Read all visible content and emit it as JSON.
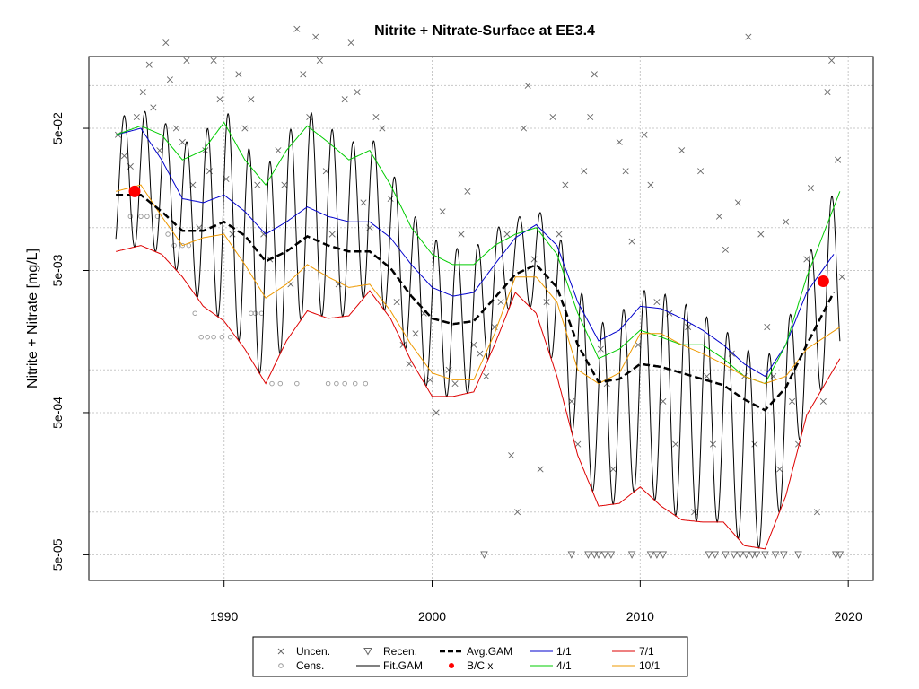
{
  "chart_data": {
    "type": "line",
    "title": "Nitrite + Nitrate-Surface at EE3.4",
    "xlabel": "",
    "ylabel": "Nitrite + Nitrate [mg/L]",
    "y_scale": "log",
    "xlim": [
      1983.5,
      2021.2
    ],
    "ylim": [
      3.3e-05,
      0.16
    ],
    "x_ticks": [
      1990,
      2000,
      2010,
      2020
    ],
    "x_tick_labels": [
      "1990",
      "2000",
      "2010",
      "2020"
    ],
    "y_ticks": [
      5e-05,
      0.0005,
      0.005,
      0.05
    ],
    "y_tick_labels": [
      "5e-05",
      "5e-04",
      "5e-03",
      "5e-02"
    ],
    "grid": true,
    "legend_position": "bottom",
    "legend": [
      {
        "label": "Uncen.",
        "symbol": "x",
        "color": "#666666"
      },
      {
        "label": "Cens.",
        "symbol": "circle",
        "color": "#999999"
      },
      {
        "label": "Recen.",
        "symbol": "triangle-down",
        "color": "#666666"
      },
      {
        "label": "Fit.GAM",
        "symbol": "line",
        "color": "#000000"
      },
      {
        "label": "Avg.GAM",
        "symbol": "dashed-line",
        "color": "#000000"
      },
      {
        "label": "B/C x",
        "symbol": "dot",
        "color": "#ff0000"
      },
      {
        "label": "1/1",
        "symbol": "line",
        "color": "#0000cc"
      },
      {
        "label": "4/1",
        "symbol": "line",
        "color": "#00cc00"
      },
      {
        "label": "7/1",
        "symbol": "line",
        "color": "#dd0000"
      },
      {
        "label": "10/1",
        "symbol": "line",
        "color": "#ee9900"
      }
    ],
    "series": [
      {
        "name": "Avg.GAM",
        "color": "#000000",
        "style": "dashed",
        "x": [
          1984.8,
          1986,
          1987,
          1988,
          1989,
          1990,
          1991,
          1992,
          1993,
          1994,
          1995,
          1996,
          1997,
          1998,
          1999,
          2000,
          2001,
          2002,
          2003,
          2004,
          2005,
          2006,
          2007,
          2008,
          2009,
          2010,
          2011,
          2012,
          2013,
          2014,
          2015,
          2016,
          2017,
          2018,
          2019.3
        ],
        "y": [
          0.017,
          0.017,
          0.013,
          0.0095,
          0.0095,
          0.011,
          0.0088,
          0.0058,
          0.0068,
          0.0087,
          0.0075,
          0.0068,
          0.0068,
          0.0052,
          0.0033,
          0.0023,
          0.0021,
          0.0022,
          0.0032,
          0.0047,
          0.0055,
          0.0038,
          0.0015,
          0.00082,
          0.00086,
          0.0011,
          0.00105,
          0.00095,
          0.00086,
          0.00078,
          0.00062,
          0.00052,
          0.00075,
          0.0015,
          0.0035
        ]
      },
      {
        "name": "1/1",
        "color": "#0000cc",
        "style": "solid",
        "x": [
          1984.8,
          1986,
          1987,
          1988,
          1989,
          1990,
          1991,
          1992,
          1993,
          1994,
          1995,
          1996,
          1997,
          1998,
          1999,
          2000,
          2001,
          2002,
          2003,
          2004,
          2005,
          2006,
          2007,
          2008,
          2009,
          2010,
          2011,
          2012,
          2013,
          2014,
          2015,
          2016,
          2017,
          2018,
          2019.3
        ],
        "y": [
          0.045,
          0.05,
          0.03,
          0.016,
          0.015,
          0.017,
          0.013,
          0.009,
          0.011,
          0.014,
          0.012,
          0.011,
          0.011,
          0.0085,
          0.0055,
          0.0038,
          0.0033,
          0.0035,
          0.0055,
          0.0085,
          0.0105,
          0.0075,
          0.003,
          0.0016,
          0.0019,
          0.0028,
          0.0027,
          0.0023,
          0.0019,
          0.0015,
          0.0011,
          0.0009,
          0.0015,
          0.0035,
          0.0065
        ]
      },
      {
        "name": "4/1",
        "color": "#00cc00",
        "style": "solid",
        "x": [
          1984.8,
          1986,
          1987,
          1988,
          1989,
          1990,
          1991,
          1992,
          1993,
          1994,
          1995,
          1996,
          1997,
          1998,
          1999,
          2000,
          2001,
          2002,
          2003,
          2004,
          2005,
          2006,
          2007,
          2008,
          2009,
          2010,
          2011,
          2012,
          2013,
          2014,
          2015,
          2016,
          2017,
          2018,
          2019.6
        ],
        "y": [
          0.045,
          0.052,
          0.045,
          0.03,
          0.035,
          0.055,
          0.03,
          0.02,
          0.035,
          0.052,
          0.04,
          0.03,
          0.035,
          0.02,
          0.01,
          0.0065,
          0.0055,
          0.0055,
          0.0075,
          0.009,
          0.01,
          0.0065,
          0.0025,
          0.0012,
          0.0014,
          0.0019,
          0.0017,
          0.0015,
          0.0015,
          0.0012,
          0.0009,
          0.0008,
          0.0015,
          0.0045,
          0.018
        ]
      },
      {
        "name": "7/1",
        "color": "#dd0000",
        "style": "solid",
        "x": [
          1984.8,
          1986,
          1987,
          1988,
          1989,
          1990,
          1991,
          1992,
          1993,
          1994,
          1995,
          1996,
          1997,
          1998,
          1999,
          2000,
          2001,
          2002,
          2003,
          2004,
          2005,
          2006,
          2007,
          2008,
          2009,
          2010,
          2011,
          2012,
          2013,
          2014,
          2015,
          2016,
          2017,
          2018,
          2019.6
        ],
        "y": [
          0.0068,
          0.0075,
          0.0065,
          0.0045,
          0.0028,
          0.0022,
          0.0014,
          0.0008,
          0.0016,
          0.0026,
          0.0023,
          0.0024,
          0.0036,
          0.0023,
          0.00115,
          0.00065,
          0.00065,
          0.0007,
          0.0015,
          0.0035,
          0.0025,
          0.0009,
          0.00025,
          0.00011,
          0.000115,
          0.00015,
          0.00011,
          8.8e-05,
          8.5e-05,
          8.5e-05,
          5.8e-05,
          5.5e-05,
          0.00013,
          0.00048,
          0.0012
        ]
      },
      {
        "name": "10/1",
        "color": "#ee9900",
        "style": "solid",
        "x": [
          1984.8,
          1986,
          1987,
          1988,
          1989,
          1990,
          1991,
          1992,
          1993,
          1994,
          1995,
          1996,
          1997,
          1998,
          1999,
          2000,
          2001,
          2002,
          2003,
          2004,
          2005,
          2006,
          2007,
          2008,
          2009,
          2010,
          2011,
          2012,
          2013,
          2014,
          2015,
          2016,
          2017,
          2018,
          2019.6
        ],
        "y": [
          0.018,
          0.02,
          0.012,
          0.0075,
          0.0085,
          0.009,
          0.0055,
          0.0032,
          0.004,
          0.0055,
          0.0045,
          0.0038,
          0.004,
          0.0026,
          0.0015,
          0.00095,
          0.00085,
          0.00085,
          0.0018,
          0.0045,
          0.0045,
          0.003,
          0.001,
          0.0008,
          0.00095,
          0.0018,
          0.0018,
          0.0015,
          0.0013,
          0.0011,
          0.0009,
          0.0008,
          0.0009,
          0.0014,
          0.002
        ]
      },
      {
        "name": "Fit.GAM",
        "color": "#000000",
        "style": "solid",
        "seasonal_envelope": "oscillates annually between the 7/1 curve (trough) and the upper 1/1 or 4/1 curve (peak)",
        "x_start": 1984.8,
        "x_end": 2019.6
      }
    ],
    "bc_points": [
      {
        "x": 1985.7,
        "y": 0.018
      },
      {
        "x": 2018.8,
        "y": 0.0042
      }
    ],
    "observations_uncensored": [
      [
        1984.9,
        0.045
      ],
      [
        1985.2,
        0.032
      ],
      [
        1985.5,
        0.027
      ],
      [
        1985.8,
        0.06
      ],
      [
        1986.1,
        0.09
      ],
      [
        1986.4,
        0.14
      ],
      [
        1986.6,
        0.07
      ],
      [
        1986.9,
        0.035
      ],
      [
        1987.2,
        0.2
      ],
      [
        1987.4,
        0.11
      ],
      [
        1987.7,
        0.05
      ],
      [
        1988.0,
        0.04
      ],
      [
        1988.2,
        0.15
      ],
      [
        1988.5,
        0.02
      ],
      [
        1988.8,
        0.01
      ],
      [
        1989.1,
        0.035
      ],
      [
        1989.3,
        0.025
      ],
      [
        1989.5,
        0.15
      ],
      [
        1989.8,
        0.08
      ],
      [
        1990.1,
        0.022
      ],
      [
        1990.4,
        0.009
      ],
      [
        1990.7,
        0.12
      ],
      [
        1991.0,
        0.05
      ],
      [
        1991.3,
        0.08
      ],
      [
        1991.6,
        0.02
      ],
      [
        1991.9,
        0.009
      ],
      [
        1992.2,
        0.006
      ],
      [
        1992.6,
        0.035
      ],
      [
        1992.9,
        0.02
      ],
      [
        1993.2,
        0.004
      ],
      [
        1993.5,
        0.25
      ],
      [
        1993.8,
        0.12
      ],
      [
        1994.1,
        0.06
      ],
      [
        1994.4,
        0.22
      ],
      [
        1994.6,
        0.15
      ],
      [
        1994.9,
        0.025
      ],
      [
        1995.2,
        0.009
      ],
      [
        1995.5,
        0.004
      ],
      [
        1995.8,
        0.08
      ],
      [
        1996.1,
        0.2
      ],
      [
        1996.4,
        0.09
      ],
      [
        1996.7,
        0.015
      ],
      [
        1997.0,
        0.01
      ],
      [
        1997.3,
        0.06
      ],
      [
        1997.6,
        0.05
      ],
      [
        1998.0,
        0.016
      ],
      [
        1998.3,
        0.003
      ],
      [
        1998.6,
        0.0015
      ],
      [
        1998.9,
        0.0011
      ],
      [
        1999.2,
        0.0018
      ],
      [
        1999.6,
        0.0025
      ],
      [
        1999.9,
        0.00085
      ],
      [
        2000.2,
        0.0005
      ],
      [
        2000.5,
        0.013
      ],
      [
        2000.8,
        0.001
      ],
      [
        2001.1,
        0.0008
      ],
      [
        2001.4,
        0.009
      ],
      [
        2001.7,
        0.018
      ],
      [
        2002.0,
        0.0015
      ],
      [
        2002.3,
        0.0013
      ],
      [
        2002.6,
        0.0009
      ],
      [
        2003.0,
        0.002
      ],
      [
        2003.3,
        0.003
      ],
      [
        2003.6,
        0.009
      ],
      [
        2003.8,
        0.00025
      ],
      [
        2004.1,
        0.0001
      ],
      [
        2004.4,
        0.05
      ],
      [
        2004.6,
        0.1
      ],
      [
        2004.9,
        0.006
      ],
      [
        2005.2,
        0.0002
      ],
      [
        2005.5,
        0.003
      ],
      [
        2005.8,
        0.06
      ],
      [
        2006.1,
        0.009
      ],
      [
        2006.4,
        0.02
      ],
      [
        2006.7,
        0.0006
      ],
      [
        2007.0,
        0.0003
      ],
      [
        2007.3,
        0.025
      ],
      [
        2007.6,
        0.06
      ],
      [
        2007.8,
        0.12
      ],
      [
        2008.1,
        0.0014
      ],
      [
        2008.4,
        0.0008
      ],
      [
        2008.7,
        0.0002
      ],
      [
        2009.0,
        0.04
      ],
      [
        2009.3,
        0.025
      ],
      [
        2009.6,
        0.008
      ],
      [
        2009.9,
        0.0015
      ],
      [
        2010.2,
        0.045
      ],
      [
        2010.5,
        0.02
      ],
      [
        2010.8,
        0.003
      ],
      [
        2011.1,
        0.0006
      ],
      [
        2011.4,
        0.0025
      ],
      [
        2011.7,
        0.0003
      ],
      [
        2012.0,
        0.035
      ],
      [
        2012.3,
        0.002
      ],
      [
        2012.6,
        0.0001
      ],
      [
        2012.9,
        0.025
      ],
      [
        2013.2,
        0.0009
      ],
      [
        2013.5,
        0.0003
      ],
      [
        2013.8,
        0.012
      ],
      [
        2014.1,
        0.007
      ],
      [
        2014.4,
        0.0013
      ],
      [
        2014.7,
        0.015
      ],
      [
        2015.0,
        0.0009
      ],
      [
        2015.2,
        0.22
      ],
      [
        2015.5,
        0.0003
      ],
      [
        2015.8,
        0.009
      ],
      [
        2016.1,
        0.002
      ],
      [
        2016.4,
        0.0009
      ],
      [
        2016.7,
        0.0002
      ],
      [
        2017.0,
        0.011
      ],
      [
        2017.3,
        0.0006
      ],
      [
        2017.6,
        0.0003
      ],
      [
        2018.0,
        0.006
      ],
      [
        2018.2,
        0.019
      ],
      [
        2018.5,
        0.0001
      ],
      [
        2018.8,
        0.0006
      ],
      [
        2019.0,
        0.09
      ],
      [
        2019.2,
        0.15
      ],
      [
        2019.5,
        0.03
      ],
      [
        2019.7,
        0.0045
      ]
    ],
    "observations_censored": [
      [
        1985.5,
        0.012
      ],
      [
        1986.0,
        0.012
      ],
      [
        1986.3,
        0.012
      ],
      [
        1986.8,
        0.012
      ],
      [
        1987.3,
        0.009
      ],
      [
        1987.6,
        0.0075
      ],
      [
        1988.0,
        0.0075
      ],
      [
        1988.3,
        0.0075
      ],
      [
        1988.6,
        0.0025
      ],
      [
        1988.9,
        0.0017
      ],
      [
        1989.2,
        0.0017
      ],
      [
        1989.5,
        0.0017
      ],
      [
        1989.9,
        0.0017
      ],
      [
        1990.3,
        0.0017
      ],
      [
        1991.3,
        0.0025
      ],
      [
        1991.5,
        0.0025
      ],
      [
        1991.8,
        0.0025
      ],
      [
        1992.3,
        0.0008
      ],
      [
        1992.7,
        0.0008
      ],
      [
        1993.5,
        0.0008
      ],
      [
        1995.0,
        0.0008
      ],
      [
        1995.4,
        0.0008
      ],
      [
        1995.8,
        0.0008
      ],
      [
        1996.3,
        0.0008
      ],
      [
        1996.8,
        0.0008
      ]
    ],
    "observations_recensored": [
      [
        2002.5,
        5e-05
      ],
      [
        2006.7,
        5e-05
      ],
      [
        2007.5,
        5e-05
      ],
      [
        2007.8,
        5e-05
      ],
      [
        2008.0,
        5e-05
      ],
      [
        2008.3,
        5e-05
      ],
      [
        2008.6,
        5e-05
      ],
      [
        2009.6,
        5e-05
      ],
      [
        2010.5,
        5e-05
      ],
      [
        2010.8,
        5e-05
      ],
      [
        2011.1,
        5e-05
      ],
      [
        2013.3,
        5e-05
      ],
      [
        2013.6,
        5e-05
      ],
      [
        2014.1,
        5e-05
      ],
      [
        2014.5,
        5e-05
      ],
      [
        2014.8,
        5e-05
      ],
      [
        2015.1,
        5e-05
      ],
      [
        2015.4,
        5e-05
      ],
      [
        2015.6,
        5e-05
      ],
      [
        2016.0,
        5e-05
      ],
      [
        2016.5,
        5e-05
      ],
      [
        2016.9,
        5e-05
      ],
      [
        2017.6,
        5e-05
      ],
      [
        2019.4,
        5e-05
      ],
      [
        2019.6,
        5e-05
      ]
    ]
  }
}
